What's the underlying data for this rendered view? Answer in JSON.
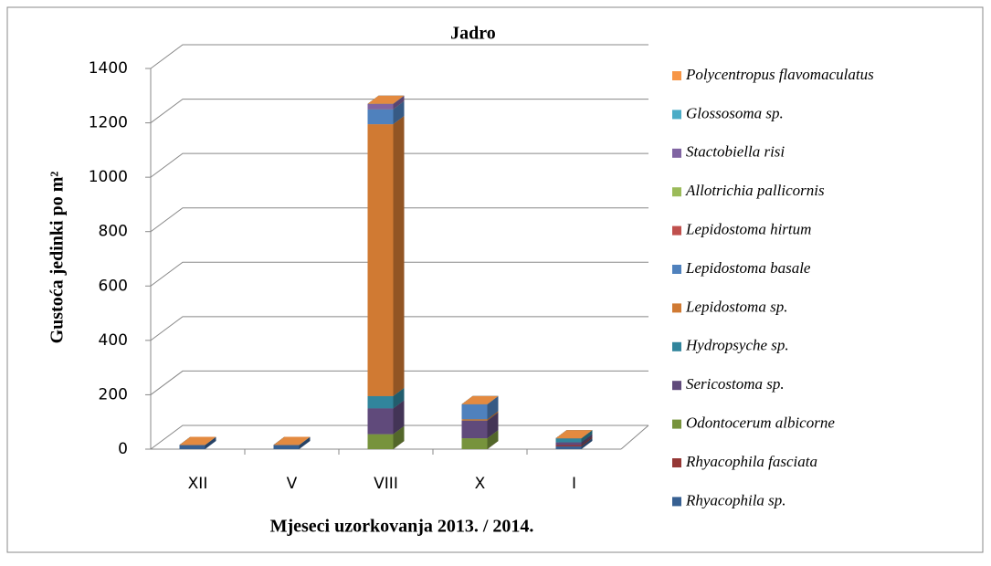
{
  "chart_data": {
    "type": "bar3d_stacked",
    "title": "Jadro",
    "x_label": "Mjeseci uzorkovanja 2013. / 2014.",
    "y_label": "Gustoća jedinki po m²",
    "categories": [
      "XII",
      "V",
      "VIII",
      "X",
      "I"
    ],
    "ylim": [
      0,
      1400
    ],
    "yticks": [
      0,
      200,
      400,
      600,
      800,
      1000,
      1200,
      1400
    ],
    "grid": true,
    "legend": "right",
    "series": [
      {
        "name": "Rhyacophila sp.",
        "color": "#376092",
        "values": [
          15,
          15,
          0,
          0,
          10
        ]
      },
      {
        "name": "Rhyacophila fasciata",
        "color": "#953735",
        "values": [
          0,
          0,
          0,
          0,
          5
        ]
      },
      {
        "name": "Odontocerum albicorne",
        "color": "#77933c",
        "values": [
          0,
          0,
          55,
          40,
          0
        ]
      },
      {
        "name": "Sericostoma sp.",
        "color": "#604a7b",
        "values": [
          0,
          0,
          95,
          65,
          10
        ]
      },
      {
        "name": "Hydropsyche sp.",
        "color": "#31859c",
        "values": [
          0,
          0,
          45,
          0,
          15
        ]
      },
      {
        "name": "Lepidostoma sp.",
        "color": "#d07a33",
        "values": [
          0,
          0,
          1000,
          5,
          0
        ]
      },
      {
        "name": "Lepidostoma basale",
        "color": "#4f81bd",
        "values": [
          0,
          0,
          55,
          55,
          0
        ]
      },
      {
        "name": "Lepidostoma hirtum",
        "color": "#c0504d",
        "values": [
          0,
          0,
          0,
          0,
          0
        ]
      },
      {
        "name": "Allotrichia pallicornis",
        "color": "#9bbb59",
        "values": [
          0,
          0,
          0,
          0,
          0
        ]
      },
      {
        "name": "Stactobiella risi",
        "color": "#8064a2",
        "values": [
          0,
          0,
          20,
          0,
          0
        ]
      },
      {
        "name": "Glossosoma sp.",
        "color": "#4bacc6",
        "values": [
          0,
          0,
          0,
          0,
          0
        ]
      },
      {
        "name": "Polycentropus flavomaculatus",
        "color": "#f79646",
        "values": [
          0,
          0,
          0,
          0,
          0
        ]
      }
    ]
  }
}
